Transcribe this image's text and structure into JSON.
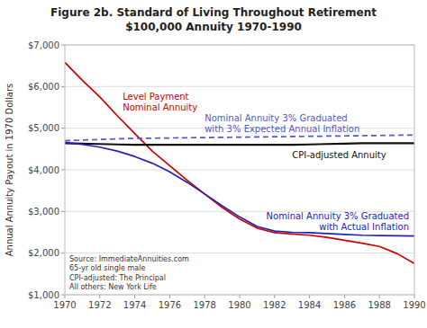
{
  "chart_data": {
    "type": "line",
    "title": "Figure 2b. Standard of Living Throughout Retirement",
    "subtitle": "$100,000 Annuity 1970-1990",
    "y_label": "Annual Annuity Payout in 1970 Dollars",
    "annotations": [
      "Source: ImmediateAnnuities.com\n65-yr old single male\nCPI-adjusted: The Principal\nAll others: New York Life"
    ],
    "x": [
      1970,
      1971,
      1972,
      1973,
      1974,
      1975,
      1976,
      1977,
      1978,
      1979,
      1980,
      1981,
      1982,
      1983,
      1984,
      1985,
      1986,
      1987,
      1988,
      1989,
      1990
    ],
    "xlim": [
      1970,
      1990
    ],
    "xticks": [
      1970,
      1972,
      1974,
      1976,
      1978,
      1980,
      1982,
      1984,
      1986,
      1988,
      1990
    ],
    "ylim": [
      1000,
      7000
    ],
    "yticks": [
      {
        "value": 1000,
        "label": "$1,000"
      },
      {
        "value": 2000,
        "label": "$2,000"
      },
      {
        "value": 3000,
        "label": "$3,000"
      },
      {
        "value": 4000,
        "label": "$4,000"
      },
      {
        "value": 5000,
        "label": "$5,000"
      },
      {
        "value": 6000,
        "label": "$6,000"
      },
      {
        "value": 7000,
        "label": "$7,000"
      }
    ],
    "grid": true,
    "series": [
      {
        "name": "Level Payment\nNominal Annuity",
        "color": "#cc0000",
        "line_style": "solid",
        "values": [
          6580,
          6150,
          5750,
          5300,
          4870,
          4450,
          4100,
          3750,
          3420,
          3100,
          2820,
          2600,
          2490,
          2460,
          2430,
          2380,
          2310,
          2240,
          2160,
          1990,
          1750
        ]
      },
      {
        "name": "CPI-adjusted Annuity",
        "color": "#111111",
        "line_style": "solid",
        "values": [
          4640,
          4630,
          4620,
          4610,
          4600,
          4600,
          4600,
          4600,
          4600,
          4600,
          4600,
          4600,
          4600,
          4600,
          4610,
          4620,
          4630,
          4640,
          4640,
          4640,
          4640
        ]
      },
      {
        "name": "Nominal Annuity 3% Graduated\nwith 3% Expected Annual Inflation",
        "color": "#5555cc",
        "line_style": "dashed",
        "values": [
          4700,
          4715,
          4730,
          4745,
          4755,
          4760,
          4765,
          4770,
          4775,
          4780,
          4785,
          4790,
          4795,
          4800,
          4805,
          4810,
          4815,
          4820,
          4825,
          4830,
          4835
        ]
      },
      {
        "name": "Nominal Annuity 3% Graduated\nwith Actual Inflation",
        "color": "#2222bb",
        "line_style": "solid",
        "values": [
          4660,
          4610,
          4545,
          4450,
          4320,
          4160,
          3950,
          3700,
          3420,
          3140,
          2870,
          2640,
          2530,
          2500,
          2490,
          2470,
          2450,
          2430,
          2420,
          2415,
          2410
        ]
      }
    ]
  }
}
